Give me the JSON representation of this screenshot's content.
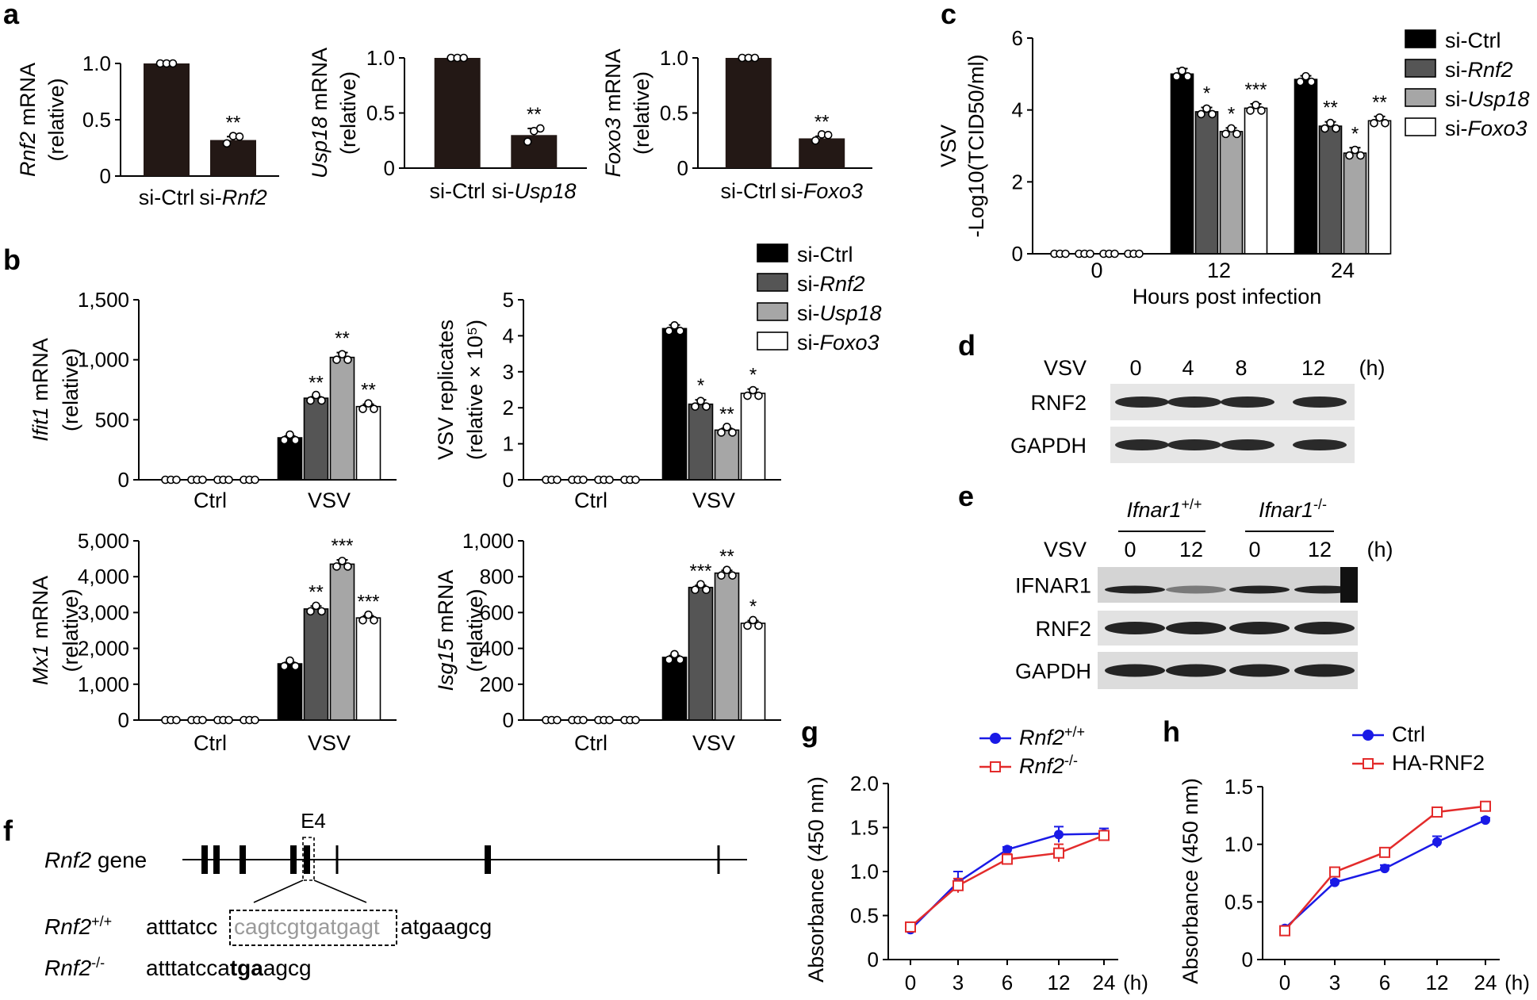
{
  "panel_labels": {
    "a": "a",
    "b": "b",
    "c": "c",
    "d": "d",
    "e": "e",
    "f": "f",
    "g": "g",
    "h": "h"
  },
  "chart_data": [
    {
      "id": "a1",
      "type": "bar",
      "panel": "a",
      "ylabel_italic": "Rnf2",
      "ylabel_rest": " mRNA",
      "ylabel2": "(relative)",
      "categories": [
        {
          "text": "si-Ctrl"
        },
        {
          "text": "si-",
          "italic": "Rnf2"
        }
      ],
      "values": [
        1.0,
        0.32
      ],
      "errors": [
        0,
        0.03
      ],
      "points": [
        [
          1.0,
          1.0,
          1.0
        ],
        [
          0.29,
          0.32,
          0.35
        ]
      ],
      "sig": [
        "",
        "**"
      ],
      "ylim": [
        0,
        1.0
      ],
      "ticks": [
        0,
        0.5,
        1.0
      ],
      "tick_labels": [
        "0",
        "0.5",
        "1.0"
      ],
      "colors": [
        "#231815",
        "#231815"
      ]
    },
    {
      "id": "a2",
      "type": "bar",
      "panel": "a",
      "ylabel_italic": "Usp18",
      "ylabel_rest": " mRNA",
      "ylabel2": "(relative)",
      "categories": [
        {
          "text": "si-Ctrl"
        },
        {
          "text": "si-",
          "italic": "Usp18"
        }
      ],
      "values": [
        1.0,
        0.3
      ],
      "errors": [
        0,
        0.06
      ],
      "points": [
        [
          1.0,
          1.0,
          1.0
        ],
        [
          0.24,
          0.3,
          0.36
        ]
      ],
      "sig": [
        "",
        "**"
      ],
      "ylim": [
        0,
        1.0
      ],
      "ticks": [
        0,
        0.5,
        1.0
      ],
      "tick_labels": [
        "0",
        "0.5",
        "1.0"
      ],
      "colors": [
        "#231815",
        "#231815"
      ]
    },
    {
      "id": "a3",
      "type": "bar",
      "panel": "a",
      "ylabel_italic": "Foxo3",
      "ylabel_rest": " mRNA",
      "ylabel2": "(relative)",
      "categories": [
        {
          "text": "si-Ctrl"
        },
        {
          "text": "si-",
          "italic": "Foxo3"
        }
      ],
      "values": [
        1.0,
        0.27
      ],
      "errors": [
        0,
        0.02
      ],
      "points": [
        [
          1.0,
          1.0,
          1.0
        ],
        [
          0.25,
          0.27,
          0.3
        ]
      ],
      "sig": [
        "",
        "**"
      ],
      "ylim": [
        0,
        1.0
      ],
      "ticks": [
        0,
        0.5,
        1.0
      ],
      "tick_labels": [
        "0",
        "0.5",
        "1.0"
      ],
      "colors": [
        "#231815",
        "#231815"
      ]
    },
    {
      "id": "b1",
      "type": "bar",
      "panel": "b",
      "ylabel_italic": "Ifit1",
      "ylabel_rest": " mRNA",
      "ylabel2": "(relative)",
      "groups": [
        "Ctrl",
        "VSV"
      ],
      "series": [
        {
          "name": "si-Ctrl",
          "values": [
            0,
            350
          ],
          "errors": [
            0,
            15
          ],
          "sig": [
            "",
            ""
          ]
        },
        {
          "name": "si-Rnf2",
          "values": [
            0,
            680
          ],
          "errors": [
            0,
            12
          ],
          "sig": [
            "",
            "**"
          ]
        },
        {
          "name": "si-Usp18",
          "values": [
            0,
            1020
          ],
          "errors": [
            0,
            40
          ],
          "sig": [
            "",
            "**"
          ]
        },
        {
          "name": "si-Foxo3",
          "values": [
            0,
            610
          ],
          "errors": [
            0,
            20
          ],
          "sig": [
            "",
            "**"
          ]
        }
      ],
      "ylim": [
        0,
        1500
      ],
      "ticks": [
        0,
        500,
        1000,
        1500
      ],
      "tick_labels": [
        "0",
        "500",
        "1,000",
        "1,500"
      ]
    },
    {
      "id": "b2",
      "type": "bar",
      "panel": "b",
      "ylabel_line1": "VSV replicates",
      "ylabel_line2": "(relative × 10⁵)",
      "groups": [
        "Ctrl",
        "VSV"
      ],
      "series": [
        {
          "name": "si-Ctrl",
          "values": [
            0,
            4.2
          ],
          "errors": [
            0,
            0.1
          ],
          "sig": [
            "",
            ""
          ]
        },
        {
          "name": "si-Rnf2",
          "values": [
            0,
            2.1
          ],
          "errors": [
            0,
            0.12
          ],
          "sig": [
            "",
            "*"
          ]
        },
        {
          "name": "si-Usp18",
          "values": [
            0,
            1.38
          ],
          "errors": [
            0,
            0.05
          ],
          "sig": [
            "",
            "**"
          ]
        },
        {
          "name": "si-Foxo3",
          "values": [
            0,
            2.4
          ],
          "errors": [
            0,
            0.12
          ],
          "sig": [
            "",
            "*"
          ]
        }
      ],
      "ylim": [
        0,
        5
      ],
      "ticks": [
        0,
        1,
        2,
        3,
        4,
        5
      ],
      "tick_labels": [
        "0",
        "1",
        "2",
        "3",
        "4",
        "5"
      ]
    },
    {
      "id": "b3",
      "type": "bar",
      "panel": "b",
      "ylabel_italic": "Mx1",
      "ylabel_rest": " mRNA",
      "ylabel2": "(relative)",
      "groups": [
        "Ctrl",
        "VSV"
      ],
      "series": [
        {
          "name": "si-Ctrl",
          "values": [
            0,
            1570
          ],
          "errors": [
            0,
            40
          ],
          "sig": [
            "",
            ""
          ]
        },
        {
          "name": "si-Rnf2",
          "values": [
            0,
            3100
          ],
          "errors": [
            0,
            80
          ],
          "sig": [
            "",
            "**"
          ]
        },
        {
          "name": "si-Usp18",
          "values": [
            0,
            4350
          ],
          "errors": [
            0,
            120
          ],
          "sig": [
            "",
            "***"
          ]
        },
        {
          "name": "si-Foxo3",
          "values": [
            0,
            2850
          ],
          "errors": [
            0,
            60
          ],
          "sig": [
            "",
            "***"
          ]
        }
      ],
      "ylim": [
        0,
        5000
      ],
      "ticks": [
        0,
        1000,
        2000,
        3000,
        4000,
        5000
      ],
      "tick_labels": [
        "0",
        "1,000",
        "2,000",
        "3,000",
        "4,000",
        "5,000"
      ]
    },
    {
      "id": "b4",
      "type": "bar",
      "panel": "b",
      "ylabel_italic": "Isg15",
      "ylabel_rest": " mRNA",
      "ylabel2": "(relative)",
      "groups": [
        "Ctrl",
        "VSV"
      ],
      "series": [
        {
          "name": "si-Ctrl",
          "values": [
            0,
            350
          ],
          "errors": [
            0,
            10
          ],
          "sig": [
            "",
            ""
          ]
        },
        {
          "name": "si-Rnf2",
          "values": [
            0,
            740
          ],
          "errors": [
            0,
            12
          ],
          "sig": [
            "",
            "***"
          ]
        },
        {
          "name": "si-Usp18",
          "values": [
            0,
            820
          ],
          "errors": [
            0,
            15
          ],
          "sig": [
            "",
            "**"
          ]
        },
        {
          "name": "si-Foxo3",
          "values": [
            0,
            540
          ],
          "errors": [
            0,
            15
          ],
          "sig": [
            "",
            "*"
          ]
        }
      ],
      "ylim": [
        0,
        1000
      ],
      "ticks": [
        0,
        200,
        400,
        600,
        800,
        1000
      ],
      "tick_labels": [
        "0",
        "200",
        "400",
        "600",
        "800",
        "1,000"
      ]
    },
    {
      "id": "c",
      "type": "bar",
      "panel": "c",
      "ylabel1": "VSV",
      "ylabel2": "-Log10(TCID50/ml)",
      "xlabel": "Hours post infection",
      "groups": [
        "0",
        "12",
        "24"
      ],
      "series": [
        {
          "name": "si-Ctrl",
          "values": [
            0,
            5.0,
            4.85
          ],
          "errors": [
            0,
            0.15,
            0.1
          ],
          "sig": [
            "",
            "",
            ""
          ]
        },
        {
          "name": "si-Rnf2",
          "values": [
            0,
            3.95,
            3.55
          ],
          "errors": [
            0,
            0.12,
            0.12
          ],
          "sig": [
            "",
            "*",
            "**"
          ]
        },
        {
          "name": "si-Usp18",
          "values": [
            0,
            3.4,
            2.8
          ],
          "errors": [
            0,
            0.1,
            0.15
          ],
          "sig": [
            "",
            "*",
            "*"
          ]
        },
        {
          "name": "si-Foxo3",
          "values": [
            0,
            4.05,
            3.7
          ],
          "errors": [
            0,
            0.12,
            0.12
          ],
          "sig": [
            "",
            "***",
            "**"
          ]
        }
      ],
      "ylim": [
        0,
        6
      ],
      "ticks": [
        0,
        2,
        4,
        6
      ],
      "tick_labels": [
        "0",
        "2",
        "4",
        "6"
      ]
    },
    {
      "id": "g",
      "type": "line",
      "panel": "g",
      "ylabel": "Absorbance (450 nm)",
      "x": [
        "0",
        "3",
        "6",
        "12",
        "24"
      ],
      "xunit": "(h)",
      "series": [
        {
          "name": "Rnf2",
          "sup": "+/+",
          "values": [
            0.34,
            0.88,
            1.25,
            1.42,
            1.43
          ],
          "errors": [
            0.02,
            0.12,
            0.03,
            0.09,
            0.06
          ],
          "color": "#1a1ae6",
          "marker": "circle"
        },
        {
          "name": "Rnf2",
          "sup": "-/-",
          "values": [
            0.37,
            0.84,
            1.14,
            1.21,
            1.41
          ],
          "errors": [
            0.02,
            0.08,
            0.06,
            0.1,
            0.04
          ],
          "color": "#e32b2b",
          "marker": "square-open"
        }
      ],
      "ylim": [
        0,
        2.0
      ],
      "ticks": [
        0,
        0.5,
        1.0,
        1.5,
        2.0
      ],
      "tick_labels": [
        "0",
        "0.5",
        "1.0",
        "1.5",
        "2.0"
      ]
    },
    {
      "id": "h",
      "type": "line",
      "panel": "h",
      "ylabel": "Absorbance (450 nm)",
      "x": [
        "0",
        "3",
        "6",
        "12",
        "24"
      ],
      "xunit": "(h)",
      "series": [
        {
          "name": "Ctrl",
          "values": [
            0.27,
            0.67,
            0.79,
            1.02,
            1.21
          ],
          "errors": [
            0.02,
            0.02,
            0.03,
            0.05,
            0.02
          ],
          "color": "#1a1ae6",
          "marker": "circle"
        },
        {
          "name": "HA-RNF2",
          "values": [
            0.25,
            0.76,
            0.93,
            1.28,
            1.33
          ],
          "errors": [
            0.02,
            0.02,
            0.02,
            0.02,
            0.02
          ],
          "color": "#e32b2b",
          "marker": "square-open"
        }
      ],
      "ylim": [
        0,
        1.5
      ],
      "ticks": [
        0,
        0.5,
        1.0,
        1.5
      ],
      "tick_labels": [
        "0",
        "0.5",
        "1.0",
        "1.5"
      ]
    }
  ],
  "legend_b": [
    {
      "prefix": "si-",
      "name": "Ctrl",
      "italic": false,
      "color": "#000000"
    },
    {
      "prefix": "si-",
      "name": "Rnf2",
      "italic": true,
      "color": "#555555"
    },
    {
      "prefix": "si-",
      "name": "Usp18",
      "italic": true,
      "color": "#a6a6a6"
    },
    {
      "prefix": "si-",
      "name": "Foxo3",
      "italic": true,
      "color": "#ffffff"
    }
  ],
  "legend_c": [
    {
      "prefix": "si-",
      "name": "Ctrl",
      "italic": false,
      "color": "#000000"
    },
    {
      "prefix": "si-",
      "name": "Rnf2",
      "italic": true,
      "color": "#555555"
    },
    {
      "prefix": "si-",
      "name": "Usp18",
      "italic": true,
      "color": "#a6a6a6"
    },
    {
      "prefix": "si-",
      "name": "Foxo3",
      "italic": true,
      "color": "#ffffff"
    }
  ],
  "blot_d": {
    "header": "VSV",
    "unit": "(h)",
    "lanes": [
      "0",
      "4",
      "8",
      "12"
    ],
    "rows": [
      "RNF2",
      "GAPDH"
    ]
  },
  "blot_e": {
    "genotype1": "Ifnar1",
    "genotype1_sup": "+/+",
    "genotype2": "Ifnar1",
    "genotype2_sup": "-/-",
    "header": "VSV",
    "unit": "(h)",
    "lanes": [
      "0",
      "12",
      "0",
      "12"
    ],
    "rows": [
      "IFNAR1",
      "RNF2",
      "GAPDH"
    ]
  },
  "gene_f": {
    "exon_label": "E4",
    "gene_name": "Rnf2",
    "gene_suffix": " gene",
    "wt_label": "Rnf2",
    "wt_sup": "+/+",
    "wt_seq_left": "atttatcc",
    "wt_seq_box": "cagtcgtgatgagt",
    "wt_seq_right": "atgaagcg",
    "ko_label": "Rnf2",
    "ko_sup": "-/-",
    "ko_seq_left": "atttatcca",
    "ko_seq_bold": "tga",
    "ko_seq_right": "agcg"
  }
}
